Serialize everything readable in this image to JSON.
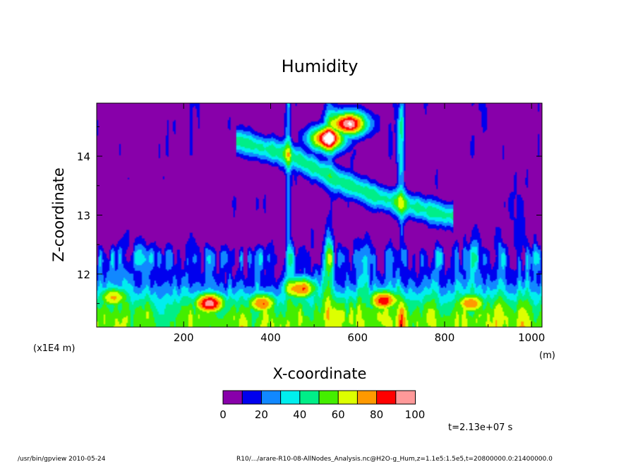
{
  "chart_data": {
    "type": "heatmap",
    "title": "Humidity",
    "xlabel": "X-coordinate",
    "ylabel": "Z-coordinate",
    "x_unit": "(m)",
    "y_unit": "(x1E4 m)",
    "xlim": [
      0,
      1024
    ],
    "ylim": [
      11.1,
      14.9
    ],
    "x_ticks": [
      200,
      400,
      600,
      800,
      1000
    ],
    "y_ticks": [
      12,
      13,
      14
    ],
    "colorbar": {
      "levels": [
        0,
        10,
        20,
        30,
        40,
        50,
        60,
        70,
        80,
        90,
        100
      ],
      "tick_labels": [
        "0",
        "20",
        "40",
        "60",
        "80",
        "100"
      ],
      "colors": [
        "#8800aa",
        "#0000ee",
        "#1188ff",
        "#00eeee",
        "#00ee88",
        "#44ee00",
        "#ddff00",
        "#ff9900",
        "#ff0000",
        "#ff9999",
        "#ffffff"
      ]
    },
    "features": [
      {
        "x": 260,
        "z": 11.5,
        "value": 95
      },
      {
        "x": 660,
        "z": 11.55,
        "value": 85
      },
      {
        "x": 530,
        "z": 14.3,
        "value": 95
      },
      {
        "x": 580,
        "z": 14.55,
        "value": 100
      },
      {
        "x": 380,
        "z": 11.5,
        "value": 80
      },
      {
        "x": 470,
        "z": 11.75,
        "value": 80
      },
      {
        "x": 860,
        "z": 11.5,
        "value": 78
      },
      {
        "x": 40,
        "z": 11.6,
        "value": 72
      }
    ],
    "band": {
      "points": [
        [
          300,
          14.3
        ],
        [
          450,
          14.0
        ],
        [
          550,
          13.6
        ],
        [
          650,
          13.3
        ],
        [
          800,
          13.0
        ]
      ],
      "value": 45
    }
  },
  "annotations": {
    "time": "t=2.13e+07 s",
    "footer_left": "/usr/bin/gpview   2010-05-24",
    "footer_right": "R10/.../arare-R10-08-AllNodes_Analysis.nc@H2O-g_Hum,z=1.1e5:1.5e5,t=20800000.0:21400000.0"
  }
}
